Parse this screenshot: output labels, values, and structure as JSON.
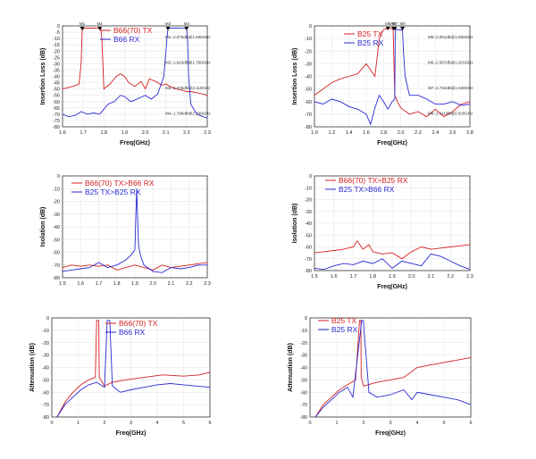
{
  "colors": {
    "red": "#d42020",
    "blue": "#2a2ad4",
    "frame": "#333333"
  },
  "chart_data": [
    {
      "type": "line",
      "xlabel": "Freq(GHz)",
      "ylabel": "Insertion Loss (dB)",
      "xlim": [
        1.6,
        2.3
      ],
      "ylim": [
        -80,
        0
      ],
      "xticks": [
        "1.6",
        "1.7",
        "1.8",
        "1.9",
        "2.0",
        "2.1",
        "2.2",
        "2.3"
      ],
      "yticks": [
        "0",
        "-5",
        "-10",
        "-15",
        "-20",
        "-25",
        "-30",
        "-35",
        "-40",
        "-45",
        "-50",
        "-55",
        "-60",
        "-65",
        "-70",
        "-75",
        "-80"
      ],
      "legend": "top-center",
      "series": [
        {
          "name": "B66(70) TX",
          "color": "red",
          "x": [
            1.6,
            1.65,
            1.68,
            1.69,
            1.695,
            1.7,
            1.72,
            1.75,
            1.77,
            1.785,
            1.79,
            1.8,
            1.83,
            1.86,
            1.88,
            1.9,
            1.92,
            1.95,
            1.98,
            2.0,
            2.02,
            2.05,
            2.08,
            2.1,
            2.12,
            2.15,
            2.18,
            2.2,
            2.22,
            2.25,
            2.28,
            2.3
          ],
          "y": [
            -50,
            -48,
            -46,
            -30,
            -4,
            -2,
            -1.8,
            -1.8,
            -1.9,
            -2,
            -10,
            -50,
            -46,
            -40,
            -38,
            -40,
            -45,
            -48,
            -44,
            -50,
            -42,
            -44,
            -47,
            -46,
            -48,
            -50,
            -51,
            -52,
            -52,
            -53,
            -54,
            -55
          ]
        },
        {
          "name": "B66 RX",
          "color": "blue",
          "x": [
            1.6,
            1.63,
            1.66,
            1.69,
            1.72,
            1.75,
            1.78,
            1.8,
            1.82,
            1.85,
            1.88,
            1.9,
            1.93,
            1.96,
            2.0,
            2.03,
            2.06,
            2.09,
            2.105,
            2.11,
            2.15,
            2.2,
            2.205,
            2.21,
            2.22,
            2.25,
            2.28,
            2.3
          ],
          "y": [
            -70,
            -72,
            -71,
            -68,
            -70,
            -69,
            -70,
            -66,
            -62,
            -60,
            -55,
            -56,
            -60,
            -58,
            -55,
            -58,
            -54,
            -40,
            -10,
            -2,
            -1.6,
            -2,
            -12,
            -40,
            -62,
            -70,
            -72,
            -73
          ]
        }
      ],
      "markers": [
        "M1",
        "M2",
        "M3",
        "M4"
      ],
      "marker_x": [
        1.695,
        1.78,
        2.11,
        2.2
      ],
      "annotations": [
        "M1:-2.070dB@1.695GHz",
        "M2:-1.923dB@1.780GHz",
        "M3:-1.676dB@2.110GHz",
        "M4:-1.796dB@2.200GHz"
      ]
    },
    {
      "type": "line",
      "xlabel": "Freq(GHz)",
      "ylabel": "Insertion Loss (dB)",
      "xlim": [
        1.0,
        2.8
      ],
      "ylim": [
        -80,
        0
      ],
      "xticks": [
        "1.0",
        "1.2",
        "1.4",
        "1.6",
        "1.8",
        "2.0",
        "2.2",
        "2.4",
        "2.6",
        "2.8"
      ],
      "yticks": [
        "0",
        "-10",
        "-20",
        "-30",
        "-40",
        "-50",
        "-60",
        "-70",
        "-80"
      ],
      "legend": "top-center",
      "series": [
        {
          "name": "B25 TX",
          "color": "red",
          "x": [
            1.0,
            1.1,
            1.2,
            1.3,
            1.4,
            1.5,
            1.6,
            1.7,
            1.75,
            1.8,
            1.84,
            1.85,
            1.88,
            1.91,
            1.915,
            1.93,
            1.96,
            2.0,
            2.1,
            2.2,
            2.3,
            2.4,
            2.5,
            2.6,
            2.7,
            2.8
          ],
          "y": [
            -55,
            -50,
            -45,
            -42,
            -40,
            -38,
            -30,
            -40,
            -10,
            -3,
            -2,
            -1.8,
            -2,
            -2.5,
            -15,
            -55,
            -60,
            -65,
            -70,
            -68,
            -72,
            -66,
            -72,
            -68,
            -62,
            -60
          ]
        },
        {
          "name": "B25 RX",
          "color": "blue",
          "x": [
            1.0,
            1.1,
            1.2,
            1.3,
            1.4,
            1.5,
            1.6,
            1.65,
            1.7,
            1.75,
            1.8,
            1.85,
            1.9,
            1.93,
            1.935,
            1.95,
            2.0,
            2.02,
            2.03,
            2.05,
            2.1,
            2.2,
            2.3,
            2.4,
            2.5,
            2.6,
            2.7,
            2.8
          ],
          "y": [
            -60,
            -62,
            -58,
            -60,
            -64,
            -66,
            -70,
            -78,
            -65,
            -55,
            -60,
            -66,
            -60,
            -58,
            -3,
            -2.8,
            -3.2,
            -3.5,
            -20,
            -40,
            -55,
            -55,
            -58,
            -62,
            -62,
            -60,
            -63,
            -62
          ]
        }
      ],
      "markers": [
        "M5",
        "M6",
        "M7",
        "M8"
      ],
      "marker_x": [
        1.85,
        1.915,
        1.93,
        2.02
      ],
      "annotations": [
        "M5:-2.051dB@1.850GHz",
        "M6:-2.567dB@1.915GHz",
        "M7:-2.734dB@1.930GHz",
        "M8:-1.611dB@2.020GHz"
      ]
    },
    {
      "type": "line",
      "xlabel": "",
      "ylabel": "Isolation (dB)",
      "xlim": [
        1.5,
        2.3
      ],
      "ylim": [
        -80,
        0
      ],
      "xticks": [
        "1.5",
        "1.6",
        "1.7",
        "1.8",
        "1.9",
        "2.0",
        "2.1",
        "2.2",
        "2.3"
      ],
      "yticks": [
        "0",
        "-10",
        "-20",
        "-30",
        "-40",
        "-50",
        "-60",
        "-70",
        "-80"
      ],
      "legend": "top-center",
      "series": [
        {
          "name": "B66(70) TX>B66 RX",
          "color": "red",
          "x": [
            1.5,
            1.55,
            1.6,
            1.65,
            1.7,
            1.75,
            1.8,
            1.85,
            1.9,
            1.95,
            2.0,
            2.05,
            2.1,
            2.15,
            2.2,
            2.25,
            2.3
          ],
          "y": [
            -72,
            -70,
            -71,
            -70,
            -71,
            -70,
            -74,
            -72,
            -70,
            -72,
            -74,
            -70,
            -72,
            -71,
            -70,
            -69,
            -68
          ]
        },
        {
          "name": "B25 TX>B25 RX",
          "color": "blue",
          "x": [
            1.5,
            1.55,
            1.6,
            1.65,
            1.7,
            1.75,
            1.8,
            1.85,
            1.88,
            1.9,
            1.91,
            1.92,
            1.93,
            1.95,
            2.0,
            2.05,
            2.1,
            2.15,
            2.2,
            2.25,
            2.3
          ],
          "y": [
            -75,
            -74,
            -73,
            -72,
            -68,
            -72,
            -70,
            -66,
            -62,
            -58,
            -10,
            -55,
            -62,
            -70,
            -75,
            -76,
            -72,
            -73,
            -72,
            -70,
            -70
          ]
        }
      ]
    },
    {
      "type": "line",
      "xlabel": "Freq(GHz)",
      "ylabel": "Isolation (dB)",
      "xlim": [
        1.5,
        2.3
      ],
      "ylim": [
        -80,
        0
      ],
      "xticks": [
        "1.5",
        "1.6",
        "1.7",
        "1.8",
        "1.9",
        "2.0",
        "2.1",
        "2.2",
        "2.3"
      ],
      "yticks": [
        "0",
        "-10",
        "-20",
        "-30",
        "-40",
        "-50",
        "-60",
        "-70",
        "-80"
      ],
      "legend": "top-center",
      "series": [
        {
          "name": "B66(70) TX>B25 RX",
          "color": "red",
          "x": [
            1.5,
            1.55,
            1.6,
            1.65,
            1.7,
            1.72,
            1.75,
            1.78,
            1.8,
            1.85,
            1.9,
            1.95,
            2.0,
            2.05,
            2.1,
            2.15,
            2.2,
            2.25,
            2.3
          ],
          "y": [
            -65,
            -64,
            -63,
            -62,
            -60,
            -55,
            -62,
            -58,
            -64,
            -66,
            -65,
            -70,
            -64,
            -60,
            -62,
            -61,
            -60,
            -59,
            -58
          ]
        },
        {
          "name": "B25 TX>B66 RX",
          "color": "blue",
          "x": [
            1.5,
            1.55,
            1.6,
            1.65,
            1.7,
            1.75,
            1.8,
            1.85,
            1.9,
            1.95,
            2.0,
            2.05,
            2.1,
            2.15,
            2.2,
            2.25,
            2.3
          ],
          "y": [
            -78,
            -79,
            -76,
            -74,
            -75,
            -72,
            -74,
            -70,
            -78,
            -72,
            -74,
            -76,
            -66,
            -68,
            -72,
            -76,
            -79
          ]
        }
      ]
    },
    {
      "type": "line",
      "xlabel": "Freq(GHz)",
      "ylabel": "Attenuation (dB)",
      "xlim": [
        0,
        6
      ],
      "ylim": [
        -80,
        0
      ],
      "xticks": [
        "0",
        "1",
        "2",
        "3",
        "4",
        "5",
        "6"
      ],
      "yticks": [
        "0",
        "-10",
        "-20",
        "-30",
        "-40",
        "-50",
        "-60",
        "-70",
        "-80"
      ],
      "legend": "top-center",
      "series": [
        {
          "name": "B66(70) TX",
          "color": "red",
          "x": [
            0.2,
            0.5,
            0.8,
            1.1,
            1.4,
            1.65,
            1.7,
            1.78,
            1.8,
            2.0,
            2.3,
            2.8,
            3.5,
            4.2,
            5.0,
            5.6,
            6.0
          ],
          "y": [
            -80,
            -68,
            -60,
            -54,
            -50,
            -48,
            -2,
            -2,
            -48,
            -55,
            -52,
            -50,
            -48,
            -46,
            -47,
            -46,
            -44
          ]
        },
        {
          "name": "B66 RX",
          "color": "blue",
          "x": [
            0.2,
            0.5,
            0.8,
            1.1,
            1.4,
            1.7,
            2.0,
            2.1,
            2.2,
            2.3,
            2.6,
            3.0,
            3.5,
            4.0,
            4.5,
            5.0,
            5.5,
            6.0
          ],
          "y": [
            -80,
            -70,
            -64,
            -58,
            -54,
            -52,
            -56,
            -2,
            -2,
            -55,
            -60,
            -58,
            -56,
            -54,
            -53,
            -54,
            -55,
            -56
          ]
        }
      ]
    },
    {
      "type": "line",
      "xlabel": "Freq(GHz)",
      "ylabel": "Attenuation (dB)",
      "xlim": [
        0,
        6
      ],
      "ylim": [
        -80,
        0
      ],
      "xticks": [
        "0",
        "1",
        "2",
        "3",
        "4",
        "5",
        "6"
      ],
      "yticks": [
        "0",
        "-10",
        "-20",
        "-30",
        "-40",
        "-50",
        "-60",
        "-70",
        "-80"
      ],
      "legend": "top-left",
      "series": [
        {
          "name": "B25 TX",
          "color": "red",
          "x": [
            0.2,
            0.5,
            0.8,
            1.1,
            1.4,
            1.7,
            1.85,
            1.9,
            1.91,
            2.0,
            2.5,
            3.0,
            3.5,
            4.0,
            4.5,
            5.0,
            5.5,
            6.0
          ],
          "y": [
            -80,
            -70,
            -64,
            -58,
            -54,
            -50,
            -2,
            -2,
            -48,
            -55,
            -52,
            -50,
            -48,
            -40,
            -38,
            -36,
            -34,
            -32
          ]
        },
        {
          "name": "B25 RX",
          "color": "blue",
          "x": [
            0.2,
            0.5,
            0.8,
            1.1,
            1.4,
            1.6,
            1.93,
            1.99,
            2.2,
            2.5,
            3.0,
            3.5,
            3.8,
            4.0,
            4.5,
            5.0,
            5.5,
            6.0
          ],
          "y": [
            -80,
            -72,
            -66,
            -60,
            -56,
            -64,
            -2,
            -2,
            -60,
            -64,
            -62,
            -58,
            -66,
            -60,
            -62,
            -64,
            -66,
            -70
          ]
        }
      ]
    }
  ]
}
